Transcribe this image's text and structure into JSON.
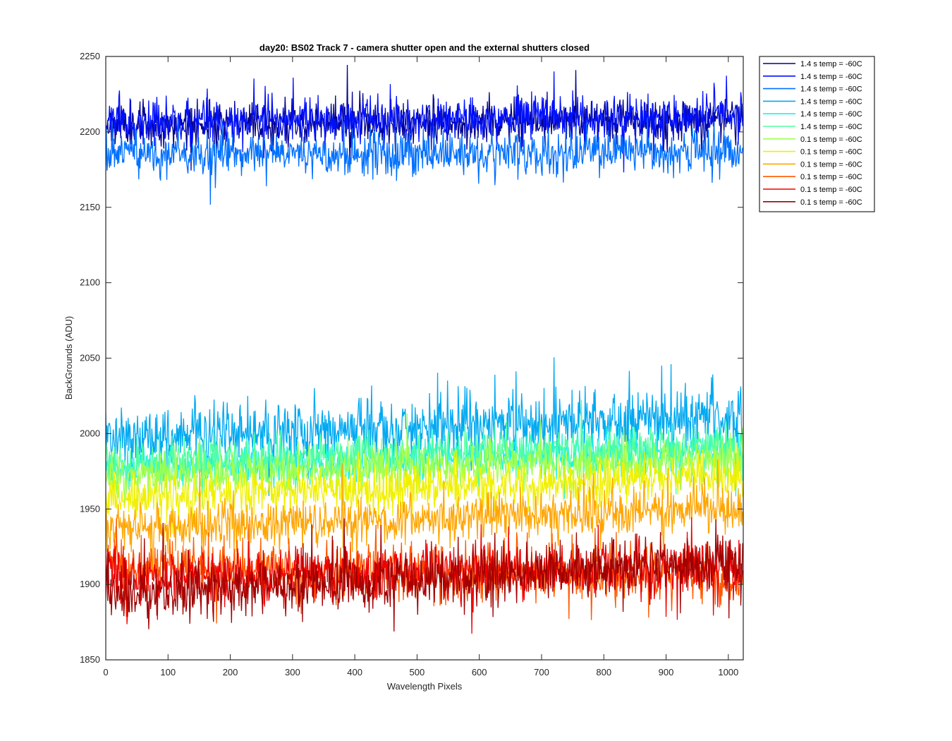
{
  "chart_data": {
    "type": "line",
    "title": "day20: BS02  Track 7 - camera shutter open and the external shutters closed",
    "xlabel": "Wavelength Pixels",
    "ylabel": "BackGrounds (ADU)",
    "xlim": [
      0,
      1024
    ],
    "ylim": [
      1850,
      2250
    ],
    "xticks": [
      0,
      100,
      200,
      300,
      400,
      500,
      600,
      700,
      800,
      900,
      1000
    ],
    "yticks": [
      1850,
      1900,
      1950,
      2000,
      2050,
      2100,
      2150,
      2200,
      2250
    ],
    "legend_position": "outside-top-right",
    "n_points": 1024,
    "series": [
      {
        "name": "1.4 s temp = -60C",
        "color": "#00008F",
        "start": 2205,
        "end": 2208,
        "noise": 7,
        "seed": 11
      },
      {
        "name": "1.4 s temp = -60C",
        "color": "#0010FF",
        "start": 2206,
        "end": 2210,
        "noise": 7,
        "seed": 23
      },
      {
        "name": "1.4 s temp = -60C",
        "color": "#0070FF",
        "start": 2185,
        "end": 2187,
        "noise": 7,
        "seed": 37
      },
      {
        "name": "1.4 s temp = -60C",
        "color": "#00A9F1",
        "start": 1997,
        "end": 2012,
        "noise": 10,
        "seed": 41
      },
      {
        "name": "1.4 s temp = -60C",
        "color": "#20F0E0",
        "start": 1977,
        "end": 1990,
        "noise": 7,
        "seed": 53
      },
      {
        "name": "1.4 s temp = -60C",
        "color": "#50FFA0",
        "start": 1979,
        "end": 1992,
        "noise": 7,
        "seed": 67
      },
      {
        "name": "0.1 s temp = -60C",
        "color": "#A0FF50",
        "start": 1972,
        "end": 1982,
        "noise": 7,
        "seed": 71
      },
      {
        "name": "0.1 s temp = -60C",
        "color": "#F0F000",
        "start": 1957,
        "end": 1972,
        "noise": 7,
        "seed": 83
      },
      {
        "name": "0.1 s temp = -60C",
        "color": "#FFA500",
        "start": 1937,
        "end": 1950,
        "noise": 8,
        "seed": 97
      },
      {
        "name": "0.1 s temp = -60C",
        "color": "#FF5A00",
        "start": 1912,
        "end": 1905,
        "noise": 9,
        "seed": 101
      },
      {
        "name": "0.1 s temp = -60C",
        "color": "#F00000",
        "start": 1905,
        "end": 1910,
        "noise": 9,
        "seed": 113
      },
      {
        "name": "0.1 s temp = -60C",
        "color": "#A00000",
        "start": 1893,
        "end": 1915,
        "noise": 9,
        "seed": 127
      }
    ]
  }
}
